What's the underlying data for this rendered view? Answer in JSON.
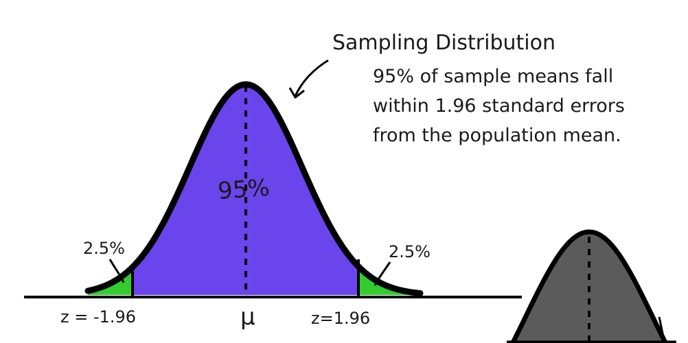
{
  "annotation": {
    "title": "Sampling Distribution",
    "lines": [
      "95% of sample means fall",
      "within 1.96  standard errors",
      "from the population mean."
    ]
  },
  "center_label": "95%",
  "left_tail_label": "2.5%",
  "right_tail_label": "2.5%",
  "axis": {
    "left_z": "z = -1.96",
    "mean": "μ",
    "right_z": "z=1.96"
  },
  "colors": {
    "center_fill": "#6a45ec",
    "tail_fill": "#33cc2f",
    "outline": "#000000",
    "gray_curve": "#5b5b5b"
  }
}
